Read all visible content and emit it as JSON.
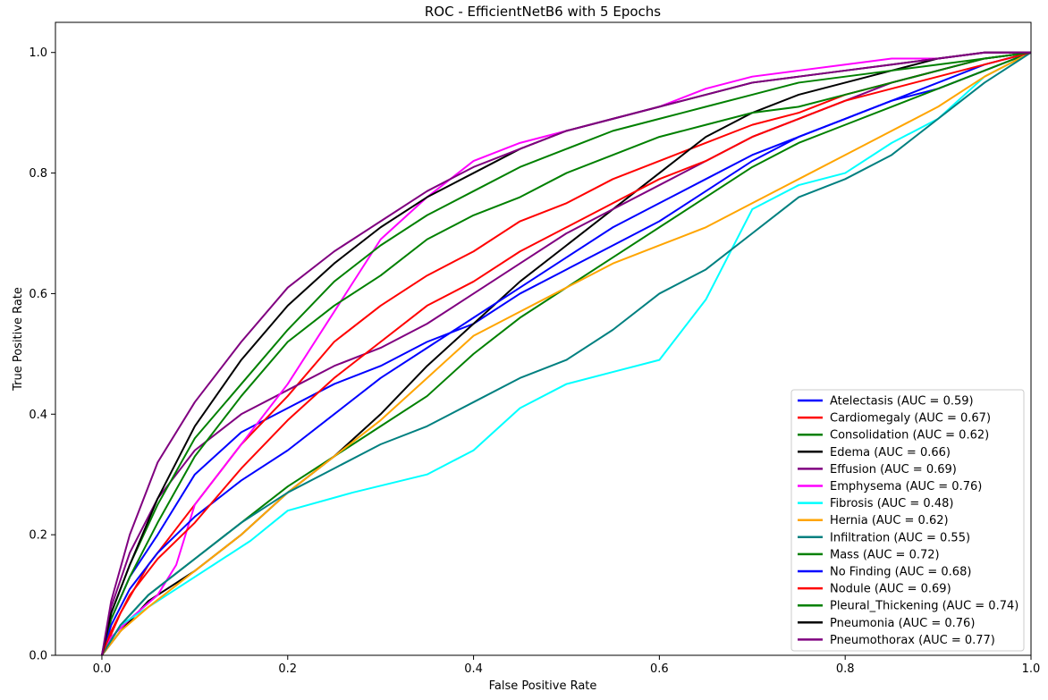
{
  "chart_data": {
    "type": "line",
    "title": "ROC - EfficientNetB6 with 5 Epochs",
    "xlabel": "False Positive Rate",
    "ylabel": "True Positive Rate",
    "xlim": [
      -0.05,
      1.0
    ],
    "ylim": [
      0.0,
      1.05
    ],
    "x_ticks": [
      0.0,
      0.2,
      0.4,
      0.6,
      0.8,
      1.0
    ],
    "y_ticks": [
      0.0,
      0.2,
      0.4,
      0.6,
      0.8,
      1.0
    ],
    "x_tick_labels": [
      "0.0",
      "0.2",
      "0.4",
      "0.6",
      "0.8",
      "1.0"
    ],
    "y_tick_labels": [
      "0.0",
      "0.2",
      "0.4",
      "0.6",
      "0.8",
      "1.0"
    ],
    "grid": false,
    "legend_position": "lower-right",
    "series": [
      {
        "name": "Atelectasis (AUC = 0.59)",
        "color": "#0000ff",
        "x": [
          0,
          0.01,
          0.03,
          0.06,
          0.1,
          0.15,
          0.2,
          0.25,
          0.3,
          0.35,
          0.4,
          0.45,
          0.5,
          0.55,
          0.6,
          0.65,
          0.7,
          0.75,
          0.8,
          0.85,
          0.9,
          0.95,
          1.0
        ],
        "y": [
          0,
          0.06,
          0.13,
          0.2,
          0.3,
          0.37,
          0.41,
          0.45,
          0.48,
          0.52,
          0.55,
          0.6,
          0.64,
          0.68,
          0.72,
          0.77,
          0.82,
          0.86,
          0.89,
          0.92,
          0.94,
          0.97,
          1.0
        ]
      },
      {
        "name": "Cardiomegaly (AUC = 0.67)",
        "color": "#ff0000",
        "x": [
          0,
          0.02,
          0.05,
          0.1,
          0.15,
          0.2,
          0.25,
          0.3,
          0.35,
          0.4,
          0.45,
          0.5,
          0.55,
          0.6,
          0.65,
          0.7,
          0.75,
          0.8,
          0.85,
          0.9,
          0.95,
          1.0
        ],
        "y": [
          0,
          0.07,
          0.15,
          0.25,
          0.35,
          0.43,
          0.52,
          0.58,
          0.63,
          0.67,
          0.72,
          0.75,
          0.79,
          0.82,
          0.85,
          0.88,
          0.9,
          0.93,
          0.95,
          0.97,
          0.99,
          1.0
        ]
      },
      {
        "name": "Consolidation (AUC = 0.62)",
        "color": "#008000",
        "x": [
          0,
          0.02,
          0.05,
          0.1,
          0.15,
          0.2,
          0.25,
          0.3,
          0.35,
          0.4,
          0.45,
          0.5,
          0.55,
          0.6,
          0.65,
          0.7,
          0.75,
          0.8,
          0.85,
          0.9,
          0.95,
          1.0
        ],
        "y": [
          0,
          0.05,
          0.1,
          0.16,
          0.22,
          0.28,
          0.33,
          0.38,
          0.43,
          0.5,
          0.56,
          0.61,
          0.66,
          0.71,
          0.76,
          0.81,
          0.85,
          0.88,
          0.91,
          0.94,
          0.97,
          1.0
        ]
      },
      {
        "name": "Edema (AUC = 0.66)",
        "color": "#000000",
        "x": [
          0,
          0.02,
          0.05,
          0.1,
          0.15,
          0.2,
          0.25,
          0.3,
          0.35,
          0.4,
          0.45,
          0.5,
          0.55,
          0.6,
          0.65,
          0.7,
          0.75,
          0.8,
          0.85,
          0.9,
          0.95,
          1.0
        ],
        "y": [
          0,
          0.04,
          0.09,
          0.14,
          0.2,
          0.27,
          0.33,
          0.4,
          0.48,
          0.55,
          0.62,
          0.68,
          0.74,
          0.8,
          0.86,
          0.9,
          0.93,
          0.95,
          0.97,
          0.99,
          1.0,
          1.0
        ]
      },
      {
        "name": "Effusion (AUC = 0.69)",
        "color": "#800080",
        "x": [
          0,
          0.01,
          0.03,
          0.06,
          0.1,
          0.15,
          0.2,
          0.25,
          0.3,
          0.35,
          0.4,
          0.45,
          0.5,
          0.55,
          0.6,
          0.65,
          0.7,
          0.75,
          0.8,
          0.85,
          0.9,
          0.95,
          1.0
        ],
        "y": [
          0,
          0.08,
          0.17,
          0.26,
          0.34,
          0.4,
          0.44,
          0.48,
          0.51,
          0.55,
          0.6,
          0.65,
          0.7,
          0.74,
          0.78,
          0.82,
          0.86,
          0.89,
          0.92,
          0.95,
          0.97,
          0.99,
          1.0
        ]
      },
      {
        "name": "Emphysema (AUC = 0.76)",
        "color": "#ff00ff",
        "x": [
          0,
          0.01,
          0.03,
          0.06,
          0.08,
          0.1,
          0.15,
          0.2,
          0.25,
          0.3,
          0.35,
          0.4,
          0.45,
          0.5,
          0.55,
          0.6,
          0.65,
          0.7,
          0.75,
          0.8,
          0.85,
          0.9,
          0.95,
          1.0
        ],
        "y": [
          0,
          0.03,
          0.06,
          0.1,
          0.15,
          0.25,
          0.35,
          0.45,
          0.57,
          0.69,
          0.76,
          0.82,
          0.85,
          0.87,
          0.89,
          0.91,
          0.94,
          0.96,
          0.97,
          0.98,
          0.99,
          0.99,
          1.0,
          1.0
        ]
      },
      {
        "name": "Fibrosis (AUC = 0.48)",
        "color": "#00ffff",
        "x": [
          0,
          0.02,
          0.05,
          0.08,
          0.12,
          0.16,
          0.2,
          0.27,
          0.35,
          0.4,
          0.45,
          0.5,
          0.55,
          0.6,
          0.65,
          0.7,
          0.75,
          0.8,
          0.85,
          0.9,
          0.95,
          1.0
        ],
        "y": [
          0,
          0.05,
          0.08,
          0.11,
          0.15,
          0.19,
          0.24,
          0.27,
          0.3,
          0.34,
          0.41,
          0.45,
          0.47,
          0.49,
          0.59,
          0.74,
          0.78,
          0.8,
          0.85,
          0.89,
          0.96,
          1.0
        ]
      },
      {
        "name": "Hernia (AUC = 0.62)",
        "color": "#ffa500",
        "x": [
          0,
          0.02,
          0.05,
          0.1,
          0.15,
          0.2,
          0.25,
          0.3,
          0.35,
          0.4,
          0.45,
          0.5,
          0.55,
          0.6,
          0.65,
          0.7,
          0.75,
          0.8,
          0.85,
          0.9,
          0.95,
          1.0
        ],
        "y": [
          0,
          0.04,
          0.08,
          0.14,
          0.2,
          0.27,
          0.33,
          0.39,
          0.46,
          0.53,
          0.57,
          0.61,
          0.65,
          0.68,
          0.71,
          0.75,
          0.79,
          0.83,
          0.87,
          0.91,
          0.96,
          1.0
        ]
      },
      {
        "name": "Infiltration (AUC = 0.55)",
        "color": "#008080",
        "x": [
          0,
          0.02,
          0.05,
          0.1,
          0.15,
          0.2,
          0.25,
          0.3,
          0.35,
          0.4,
          0.45,
          0.5,
          0.55,
          0.6,
          0.65,
          0.7,
          0.75,
          0.8,
          0.85,
          0.9,
          0.95,
          1.0
        ],
        "y": [
          0,
          0.05,
          0.1,
          0.16,
          0.22,
          0.27,
          0.31,
          0.35,
          0.38,
          0.42,
          0.46,
          0.49,
          0.54,
          0.6,
          0.64,
          0.7,
          0.76,
          0.79,
          0.83,
          0.89,
          0.95,
          1.0
        ]
      },
      {
        "name": "Mass (AUC = 0.72)",
        "color": "#008000",
        "x": [
          0,
          0.01,
          0.03,
          0.06,
          0.1,
          0.15,
          0.2,
          0.25,
          0.3,
          0.35,
          0.4,
          0.45,
          0.5,
          0.55,
          0.6,
          0.65,
          0.7,
          0.75,
          0.8,
          0.85,
          0.9,
          0.95,
          1.0
        ],
        "y": [
          0,
          0.06,
          0.13,
          0.22,
          0.33,
          0.43,
          0.52,
          0.58,
          0.63,
          0.69,
          0.73,
          0.76,
          0.8,
          0.83,
          0.86,
          0.88,
          0.9,
          0.91,
          0.93,
          0.95,
          0.97,
          0.99,
          1.0
        ]
      },
      {
        "name": "No Finding (AUC = 0.68)",
        "color": "#0000ff",
        "x": [
          0,
          0.01,
          0.03,
          0.06,
          0.1,
          0.15,
          0.2,
          0.25,
          0.3,
          0.35,
          0.4,
          0.45,
          0.5,
          0.55,
          0.6,
          0.65,
          0.7,
          0.75,
          0.8,
          0.85,
          0.9,
          0.95,
          1.0
        ],
        "y": [
          0,
          0.05,
          0.11,
          0.17,
          0.23,
          0.29,
          0.34,
          0.4,
          0.46,
          0.51,
          0.56,
          0.61,
          0.66,
          0.71,
          0.75,
          0.79,
          0.83,
          0.86,
          0.89,
          0.92,
          0.95,
          0.98,
          1.0
        ]
      },
      {
        "name": "Nodule (AUC = 0.69)",
        "color": "#ff0000",
        "x": [
          0,
          0.01,
          0.03,
          0.06,
          0.1,
          0.15,
          0.2,
          0.25,
          0.3,
          0.35,
          0.4,
          0.45,
          0.5,
          0.55,
          0.6,
          0.65,
          0.7,
          0.75,
          0.8,
          0.85,
          0.9,
          0.95,
          1.0
        ],
        "y": [
          0,
          0.04,
          0.1,
          0.16,
          0.22,
          0.31,
          0.39,
          0.46,
          0.52,
          0.58,
          0.62,
          0.67,
          0.71,
          0.75,
          0.79,
          0.82,
          0.86,
          0.89,
          0.92,
          0.94,
          0.96,
          0.98,
          1.0
        ]
      },
      {
        "name": "Pleural_Thickening (AUC = 0.74)",
        "color": "#008000",
        "x": [
          0,
          0.01,
          0.03,
          0.06,
          0.1,
          0.15,
          0.2,
          0.25,
          0.3,
          0.35,
          0.4,
          0.45,
          0.5,
          0.55,
          0.6,
          0.65,
          0.7,
          0.75,
          0.8,
          0.85,
          0.9,
          0.95,
          1.0
        ],
        "y": [
          0,
          0.07,
          0.15,
          0.25,
          0.36,
          0.45,
          0.54,
          0.62,
          0.68,
          0.73,
          0.77,
          0.81,
          0.84,
          0.87,
          0.89,
          0.91,
          0.93,
          0.95,
          0.96,
          0.97,
          0.98,
          0.99,
          1.0
        ]
      },
      {
        "name": "Pneumonia (AUC = 0.76)",
        "color": "#000000",
        "x": [
          0,
          0.01,
          0.03,
          0.06,
          0.1,
          0.15,
          0.2,
          0.25,
          0.3,
          0.35,
          0.4,
          0.45,
          0.5,
          0.55,
          0.6,
          0.65,
          0.7,
          0.75,
          0.8,
          0.85,
          0.9,
          0.95,
          1.0
        ],
        "y": [
          0,
          0.07,
          0.15,
          0.26,
          0.38,
          0.49,
          0.58,
          0.65,
          0.71,
          0.76,
          0.8,
          0.84,
          0.87,
          0.89,
          0.91,
          0.93,
          0.95,
          0.96,
          0.97,
          0.98,
          0.99,
          1.0,
          1.0
        ]
      },
      {
        "name": "Pneumothorax (AUC = 0.77)",
        "color": "#800080",
        "x": [
          0,
          0.01,
          0.03,
          0.06,
          0.1,
          0.15,
          0.2,
          0.25,
          0.3,
          0.35,
          0.4,
          0.45,
          0.5,
          0.55,
          0.6,
          0.65,
          0.7,
          0.75,
          0.8,
          0.85,
          0.9,
          0.95,
          1.0
        ],
        "y": [
          0,
          0.09,
          0.2,
          0.32,
          0.42,
          0.52,
          0.61,
          0.67,
          0.72,
          0.77,
          0.81,
          0.84,
          0.87,
          0.89,
          0.91,
          0.93,
          0.95,
          0.96,
          0.97,
          0.98,
          0.99,
          1.0,
          1.0
        ]
      }
    ]
  }
}
